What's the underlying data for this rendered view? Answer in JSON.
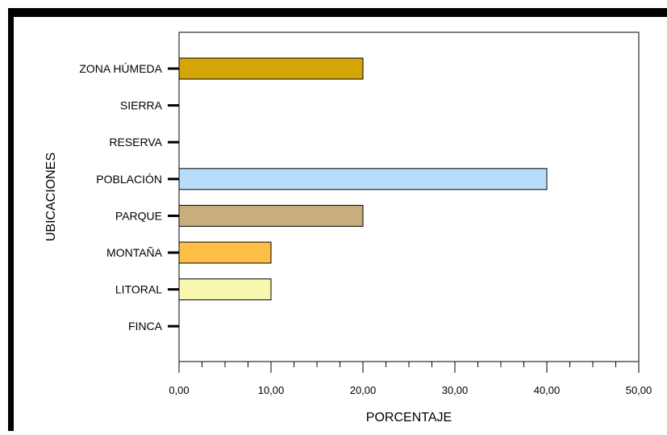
{
  "chart_data": {
    "type": "bar",
    "orientation": "horizontal",
    "title": "",
    "xlabel": "PORCENTAJE",
    "ylabel": "UBICACIONES",
    "xlim": [
      0,
      50
    ],
    "x_ticks": [
      "0,00",
      "10,00",
      "20,00",
      "30,00",
      "40,00",
      "50,00"
    ],
    "grid": false,
    "legend": "none",
    "categories": [
      "ZONA HÚMEDA",
      "SIERRA",
      "RESERVA",
      "POBLACIÓN",
      "PARQUE",
      "MONTAÑA",
      "LITORAL",
      "FINCA"
    ],
    "values": [
      20,
      0,
      0,
      40,
      20,
      10,
      10,
      0
    ],
    "colors": [
      "#d4a506",
      "#ffffff",
      "#ffffff",
      "#b8dcf7",
      "#c8ae7c",
      "#ffbf47",
      "#f7f7b0",
      "#ffffff"
    ]
  }
}
